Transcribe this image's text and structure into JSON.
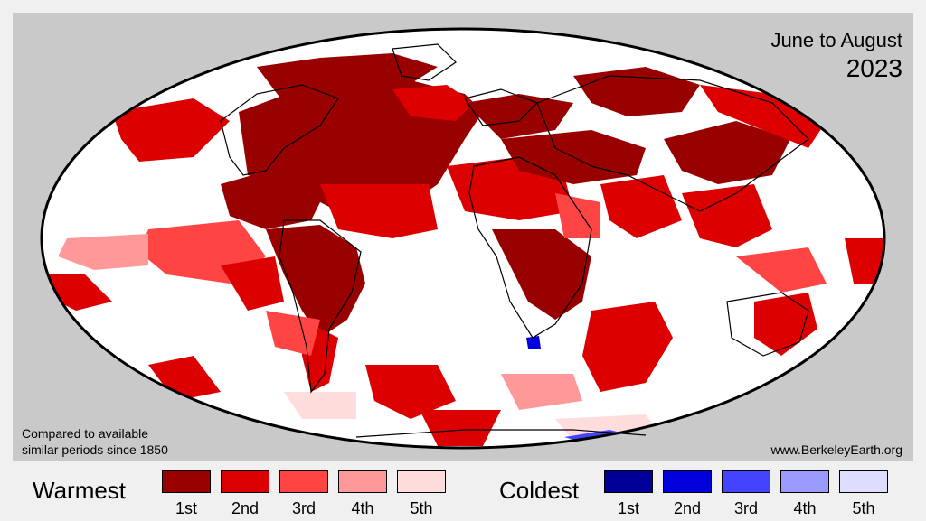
{
  "title": {
    "period": "June to August",
    "year": "2023"
  },
  "note": {
    "line1": "Compared to available",
    "line2": "similar periods since 1850"
  },
  "credit": "www.BerkeleyEarth.org",
  "colors": {
    "background": "#f0f0f0",
    "panel": "#c9c9c9",
    "ocean": "#ffffff",
    "warm": [
      "#990000",
      "#dd0000",
      "#ff4444",
      "#ff9999",
      "#ffdddd"
    ],
    "cold": [
      "#000099",
      "#0000dd",
      "#4444ff",
      "#9999ff",
      "#ddddff"
    ]
  },
  "legend": {
    "warmest": {
      "title": "Warmest",
      "ranks": [
        "1st",
        "2nd",
        "3rd",
        "4th",
        "5th"
      ]
    },
    "coldest": {
      "title": "Coldest",
      "ranks": [
        "1st",
        "2nd",
        "3rd",
        "4th",
        "5th"
      ]
    }
  }
}
